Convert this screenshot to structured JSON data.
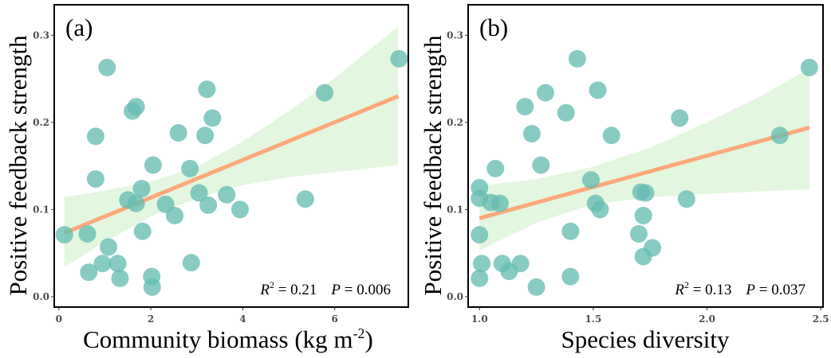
{
  "colors": {
    "point": "#66bdb2",
    "point_opacity": 0.78,
    "fit_line": "#fba87a",
    "ci_band": "#e3f6df",
    "axis": "#000000",
    "tick_text": "#4d4d4d"
  },
  "chart_data": [
    {
      "type": "scatter",
      "panel_label": "(a)",
      "xlabel": "Community biomass (kg m",
      "xlabel_sup": "-2",
      "xlabel_tail": ")",
      "ylabel": "Positive feedback strength",
      "xlim": [
        -0.1,
        7.6
      ],
      "ylim": [
        -0.012,
        0.335
      ],
      "xticks": [
        0,
        2,
        4,
        6
      ],
      "xtick_labels": [
        "0",
        "2",
        "4",
        "6"
      ],
      "yticks": [
        0.0,
        0.1,
        0.2,
        0.3
      ],
      "ytick_labels": [
        "0.0",
        "0.1",
        "0.2",
        "0.3"
      ],
      "grid": false,
      "stats": {
        "r2_label": "R",
        "r2_sup": "2",
        "r2_value": " = 0.21",
        "p_label": "P",
        "p_value": " = 0.006"
      },
      "fit": {
        "x": [
          0.12,
          7.38
        ],
        "y": [
          0.073,
          0.23
        ]
      },
      "ci": {
        "x": [
          0.12,
          1.0,
          2.0,
          3.0,
          4.0,
          5.0,
          6.0,
          7.38
        ],
        "upper": [
          0.114,
          0.122,
          0.132,
          0.149,
          0.178,
          0.213,
          0.251,
          0.31
        ],
        "lower": [
          0.034,
          0.063,
          0.092,
          0.113,
          0.128,
          0.137,
          0.143,
          0.151
        ]
      },
      "points": [
        {
          "x": 0.12,
          "y": 0.071
        },
        {
          "x": 0.62,
          "y": 0.072
        },
        {
          "x": 0.65,
          "y": 0.028
        },
        {
          "x": 0.95,
          "y": 0.038
        },
        {
          "x": 1.08,
          "y": 0.057
        },
        {
          "x": 1.28,
          "y": 0.038
        },
        {
          "x": 1.33,
          "y": 0.021
        },
        {
          "x": 1.82,
          "y": 0.075
        },
        {
          "x": 2.02,
          "y": 0.023
        },
        {
          "x": 2.03,
          "y": 0.011
        },
        {
          "x": 0.8,
          "y": 0.184
        },
        {
          "x": 0.8,
          "y": 0.135
        },
        {
          "x": 1.05,
          "y": 0.263
        },
        {
          "x": 1.6,
          "y": 0.213
        },
        {
          "x": 1.68,
          "y": 0.218
        },
        {
          "x": 1.5,
          "y": 0.111
        },
        {
          "x": 1.68,
          "y": 0.107
        },
        {
          "x": 1.8,
          "y": 0.124
        },
        {
          "x": 2.05,
          "y": 0.151
        },
        {
          "x": 2.32,
          "y": 0.106
        },
        {
          "x": 2.52,
          "y": 0.093
        },
        {
          "x": 2.6,
          "y": 0.188
        },
        {
          "x": 2.85,
          "y": 0.147
        },
        {
          "x": 3.05,
          "y": 0.119
        },
        {
          "x": 3.18,
          "y": 0.185
        },
        {
          "x": 3.25,
          "y": 0.105
        },
        {
          "x": 3.22,
          "y": 0.238
        },
        {
          "x": 3.34,
          "y": 0.205
        },
        {
          "x": 2.88,
          "y": 0.039
        },
        {
          "x": 3.65,
          "y": 0.117
        },
        {
          "x": 3.94,
          "y": 0.1
        },
        {
          "x": 5.36,
          "y": 0.112
        },
        {
          "x": 5.78,
          "y": 0.234
        },
        {
          "x": 7.4,
          "y": 0.273
        }
      ]
    },
    {
      "type": "scatter",
      "panel_label": "(b)",
      "xlabel": "Species diversity",
      "ylabel": "Positive feedback strength",
      "xlim": [
        0.95,
        2.51
      ],
      "ylim": [
        -0.012,
        0.335
      ],
      "xticks": [
        1.0,
        1.5,
        2.0,
        2.5
      ],
      "xtick_labels": [
        "1.0",
        "1.5",
        "2.0",
        "2.5"
      ],
      "yticks": [
        0.0,
        0.1,
        0.2,
        0.3
      ],
      "ytick_labels": [
        "0.0",
        "0.1",
        "0.2",
        "0.3"
      ],
      "grid": false,
      "stats": {
        "r2_label": "R",
        "r2_sup": "2",
        "r2_value": " = 0.13",
        "p_label": "P",
        "p_value": " = 0.037"
      },
      "fit": {
        "x": [
          1.0,
          2.45
        ],
        "y": [
          0.09,
          0.194
        ]
      },
      "ci": {
        "x": [
          1.0,
          1.25,
          1.5,
          1.75,
          2.0,
          2.25,
          2.45
        ],
        "upper": [
          0.127,
          0.135,
          0.149,
          0.171,
          0.2,
          0.232,
          0.262
        ],
        "lower": [
          0.053,
          0.085,
          0.106,
          0.114,
          0.118,
          0.121,
          0.123
        ]
      },
      "points": [
        {
          "x": 1.0,
          "y": 0.125
        },
        {
          "x": 1.0,
          "y": 0.113
        },
        {
          "x": 1.0,
          "y": 0.071
        },
        {
          "x": 1.0,
          "y": 0.021
        },
        {
          "x": 1.01,
          "y": 0.038
        },
        {
          "x": 1.05,
          "y": 0.108
        },
        {
          "x": 1.07,
          "y": 0.147
        },
        {
          "x": 1.09,
          "y": 0.107
        },
        {
          "x": 1.1,
          "y": 0.038
        },
        {
          "x": 1.13,
          "y": 0.029
        },
        {
          "x": 1.18,
          "y": 0.038
        },
        {
          "x": 1.2,
          "y": 0.218
        },
        {
          "x": 1.23,
          "y": 0.187
        },
        {
          "x": 1.25,
          "y": 0.011
        },
        {
          "x": 1.27,
          "y": 0.151
        },
        {
          "x": 1.29,
          "y": 0.234
        },
        {
          "x": 1.38,
          "y": 0.211
        },
        {
          "x": 1.4,
          "y": 0.075
        },
        {
          "x": 1.4,
          "y": 0.023
        },
        {
          "x": 1.43,
          "y": 0.273
        },
        {
          "x": 1.49,
          "y": 0.134
        },
        {
          "x": 1.51,
          "y": 0.107
        },
        {
          "x": 1.52,
          "y": 0.237
        },
        {
          "x": 1.53,
          "y": 0.1
        },
        {
          "x": 1.58,
          "y": 0.185
        },
        {
          "x": 1.7,
          "y": 0.072
        },
        {
          "x": 1.71,
          "y": 0.12
        },
        {
          "x": 1.72,
          "y": 0.046
        },
        {
          "x": 1.72,
          "y": 0.093
        },
        {
          "x": 1.73,
          "y": 0.119
        },
        {
          "x": 1.76,
          "y": 0.056
        },
        {
          "x": 1.88,
          "y": 0.205
        },
        {
          "x": 1.91,
          "y": 0.112
        },
        {
          "x": 2.32,
          "y": 0.185
        },
        {
          "x": 2.45,
          "y": 0.263
        }
      ]
    }
  ]
}
